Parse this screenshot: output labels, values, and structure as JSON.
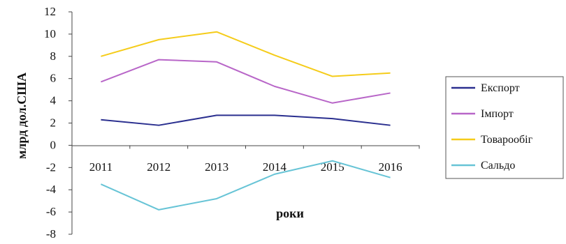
{
  "chart_data": {
    "type": "line",
    "title": "",
    "xlabel": "роки",
    "ylabel": "млрд дол.США",
    "categories": [
      "2011",
      "2012",
      "2013",
      "2014",
      "2015",
      "2016"
    ],
    "ylim": [
      -8,
      12
    ],
    "yticks": [
      12,
      10,
      8,
      6,
      4,
      2,
      0,
      -2,
      -4,
      -6,
      -8
    ],
    "grid": false,
    "legend_position": "right",
    "series": [
      {
        "name": "Експорт",
        "color": "#2a2f8f",
        "values": [
          2.3,
          1.8,
          2.7,
          2.7,
          2.4,
          1.8
        ]
      },
      {
        "name": "Імпорт",
        "color": "#b866c8",
        "values": [
          5.7,
          7.7,
          7.5,
          5.3,
          3.8,
          4.7
        ]
      },
      {
        "name": "Товарообіг",
        "color": "#f5cc1a",
        "values": [
          8.0,
          9.5,
          10.2,
          8.1,
          6.2,
          6.5
        ]
      },
      {
        "name": "Сальдо",
        "color": "#67c4d6",
        "values": [
          -3.5,
          -5.8,
          -4.8,
          -2.6,
          -1.4,
          -2.9
        ]
      }
    ]
  }
}
